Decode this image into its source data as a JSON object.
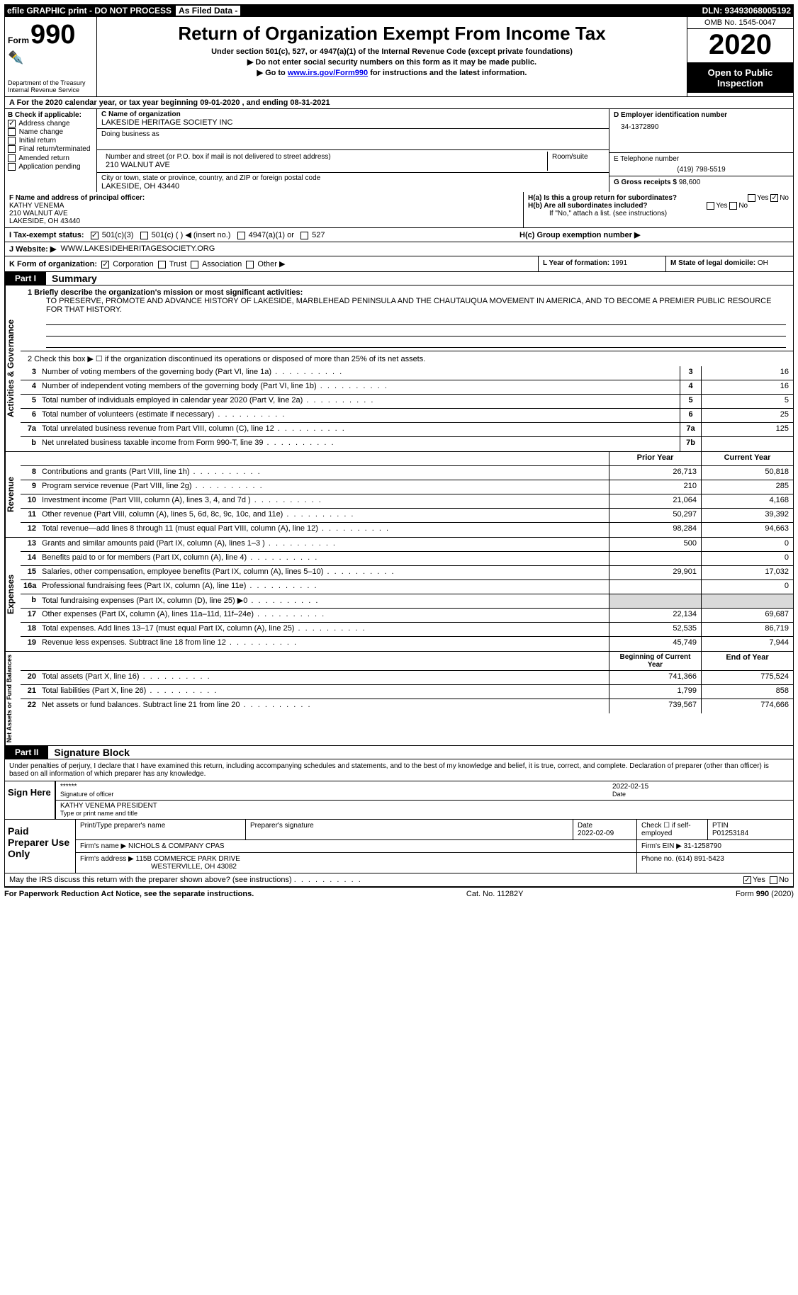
{
  "topbar": {
    "efile": "efile GRAPHIC print - DO NOT PROCESS",
    "asFiled": "As Filed Data -",
    "dln": "DLN: 93493068005192"
  },
  "header": {
    "formLabel": "Form",
    "formNum": "990",
    "dept1": "Department of the Treasury",
    "dept2": "Internal Revenue Service",
    "title": "Return of Organization Exempt From Income Tax",
    "sub1": "Under section 501(c), 527, or 4947(a)(1) of the Internal Revenue Code (except private foundations)",
    "sub2": "▶ Do not enter social security numbers on this form as it may be made public.",
    "sub3_pre": "▶ Go to ",
    "sub3_link": "www.irs.gov/Form990",
    "sub3_post": " for instructions and the latest information.",
    "omb": "OMB No. 1545-0047",
    "year": "2020",
    "open": "Open to Public Inspection"
  },
  "rowA": "A   For the 2020 calendar year, or tax year beginning 09-01-2020   , and ending 08-31-2021",
  "colB": {
    "title": "B Check if applicable:",
    "items": [
      {
        "label": "Address change",
        "checked": true
      },
      {
        "label": "Name change",
        "checked": false
      },
      {
        "label": "Initial return",
        "checked": false
      },
      {
        "label": "Final return/terminated",
        "checked": false
      },
      {
        "label": "Amended return",
        "checked": false
      },
      {
        "label": "Application pending",
        "checked": false
      }
    ]
  },
  "colC": {
    "nameLabel": "C Name of organization",
    "name": "LAKESIDE HERITAGE SOCIETY INC",
    "dba": "Doing business as",
    "streetLabel": "Number and street (or P.O. box if mail is not delivered to street address)",
    "roomLabel": "Room/suite",
    "street": "210 WALNUT AVE",
    "cityLabel": "City or town, state or province, country, and ZIP or foreign postal code",
    "city": "LAKESIDE, OH  43440"
  },
  "colD": {
    "einLabel": "D Employer identification number",
    "ein": "34-1372890",
    "phoneLabel": "E Telephone number",
    "phone": "(419) 798-5519",
    "grossLabel": "G Gross receipts $ ",
    "gross": "98,600"
  },
  "rowF": {
    "label": "F  Name and address of principal officer:",
    "name": "KATHY VENEMA",
    "street": "210 WALNUT AVE",
    "city": "LAKESIDE, OH  43440"
  },
  "rowH": {
    "ha": "H(a)  Is this a group return for subordinates?",
    "hb": "H(b)  Are all subordinates included?",
    "hbNote": "If \"No,\" attach a list. (see instructions)",
    "hc": "H(c)  Group exemption number ▶"
  },
  "rowI": {
    "label": "I   Tax-exempt status:",
    "opt1": "501(c)(3)",
    "opt2": "501(c) (   ) ◀ (insert no.)",
    "opt3": "4947(a)(1) or",
    "opt4": "527"
  },
  "rowJ": {
    "label": "J   Website: ▶",
    "val": "WWW.LAKESIDEHERITAGESOCIETY.ORG"
  },
  "rowK": {
    "label": "K Form of organization:",
    "opts": [
      "Corporation",
      "Trust",
      "Association",
      "Other ▶"
    ]
  },
  "rowL": {
    "label": "L Year of formation: ",
    "val": "1991"
  },
  "rowM": {
    "label": "M State of legal domicile: ",
    "val": "OH"
  },
  "partI": {
    "tag": "Part I",
    "title": "Summary"
  },
  "mission": {
    "line1label": "1  Briefly describe the organization's mission or most significant activities:",
    "text": "TO PRESERVE, PROMOTE AND ADVANCE HISTORY OF LAKESIDE, MARBLEHEAD PENINSULA AND THE CHAUTAUQUA MOVEMENT IN AMERICA, AND TO BECOME A PREMIER PUBLIC RESOURCE FOR THAT HISTORY."
  },
  "line2": "2   Check this box ▶ ☐  if the organization discontinued its operations or disposed of more than 25% of its net assets.",
  "govRows": [
    {
      "n": "3",
      "label": "Number of voting members of the governing body (Part VI, line 1a)",
      "id": "3",
      "val": "16"
    },
    {
      "n": "4",
      "label": "Number of independent voting members of the governing body (Part VI, line 1b)",
      "id": "4",
      "val": "16"
    },
    {
      "n": "5",
      "label": "Total number of individuals employed in calendar year 2020 (Part V, line 2a)",
      "id": "5",
      "val": "5"
    },
    {
      "n": "6",
      "label": "Total number of volunteers (estimate if necessary)",
      "id": "6",
      "val": "25"
    },
    {
      "n": "7a",
      "label": "Total unrelated business revenue from Part VIII, column (C), line 12",
      "id": "7a",
      "val": "125"
    },
    {
      "n": "b",
      "label": "Net unrelated business taxable income from Form 990-T, line 39",
      "id": "7b",
      "val": ""
    }
  ],
  "yearHeader": {
    "prior": "Prior Year",
    "current": "Current Year"
  },
  "revRows": [
    {
      "n": "8",
      "label": "Contributions and grants (Part VIII, line 1h)",
      "p": "26,713",
      "c": "50,818"
    },
    {
      "n": "9",
      "label": "Program service revenue (Part VIII, line 2g)",
      "p": "210",
      "c": "285"
    },
    {
      "n": "10",
      "label": "Investment income (Part VIII, column (A), lines 3, 4, and 7d )",
      "p": "21,064",
      "c": "4,168"
    },
    {
      "n": "11",
      "label": "Other revenue (Part VIII, column (A), lines 5, 6d, 8c, 9c, 10c, and 11e)",
      "p": "50,297",
      "c": "39,392"
    },
    {
      "n": "12",
      "label": "Total revenue—add lines 8 through 11 (must equal Part VIII, column (A), line 12)",
      "p": "98,284",
      "c": "94,663"
    }
  ],
  "expRows": [
    {
      "n": "13",
      "label": "Grants and similar amounts paid (Part IX, column (A), lines 1–3 )",
      "p": "500",
      "c": "0"
    },
    {
      "n": "14",
      "label": "Benefits paid to or for members (Part IX, column (A), line 4)",
      "p": "",
      "c": "0"
    },
    {
      "n": "15",
      "label": "Salaries, other compensation, employee benefits (Part IX, column (A), lines 5–10)",
      "p": "29,901",
      "c": "17,032"
    },
    {
      "n": "16a",
      "label": "Professional fundraising fees (Part IX, column (A), line 11e)",
      "p": "",
      "c": "0"
    },
    {
      "n": "b",
      "label": "Total fundraising expenses (Part IX, column (D), line 25) ▶0",
      "p": "grey",
      "c": "grey"
    },
    {
      "n": "17",
      "label": "Other expenses (Part IX, column (A), lines 11a–11d, 11f–24e)",
      "p": "22,134",
      "c": "69,687"
    },
    {
      "n": "18",
      "label": "Total expenses. Add lines 13–17 (must equal Part IX, column (A), line 25)",
      "p": "52,535",
      "c": "86,719"
    },
    {
      "n": "19",
      "label": "Revenue less expenses. Subtract line 18 from line 12",
      "p": "45,749",
      "c": "7,944"
    }
  ],
  "naHeader": {
    "begin": "Beginning of Current Year",
    "end": "End of Year"
  },
  "naRows": [
    {
      "n": "20",
      "label": "Total assets (Part X, line 16)",
      "p": "741,366",
      "c": "775,524"
    },
    {
      "n": "21",
      "label": "Total liabilities (Part X, line 26)",
      "p": "1,799",
      "c": "858"
    },
    {
      "n": "22",
      "label": "Net assets or fund balances. Subtract line 21 from line 20",
      "p": "739,567",
      "c": "774,666"
    }
  ],
  "partII": {
    "tag": "Part II",
    "title": "Signature Block"
  },
  "sigIntro": "Under penalties of perjury, I declare that I have examined this return, including accompanying schedules and statements, and to the best of my knowledge and belief, it is true, correct, and complete. Declaration of preparer (other than officer) is based on all information of which preparer has any knowledge.",
  "sign": {
    "here": "Sign Here",
    "stars": "******",
    "sigOf": "Signature of officer",
    "date": "2022-02-15",
    "dateLbl": "Date",
    "name": "KATHY VENEMA PRESIDENT",
    "typeLbl": "Type or print name and title"
  },
  "prep": {
    "title": "Paid Preparer Use Only",
    "h1": "Print/Type preparer's name",
    "h2": "Preparer's signature",
    "h3": "Date",
    "h3v": "2022-02-09",
    "h4": "Check ☐ if self-employed",
    "h5": "PTIN",
    "h5v": "P01253184",
    "firmLbl": "Firm's name     ▶",
    "firm": "NICHOLS & COMPANY CPAS",
    "feinLbl": "Firm's EIN ▶",
    "fein": "31-1258790",
    "addrLbl": "Firm's address ▶",
    "addr1": "115B COMMERCE PARK DRIVE",
    "addr2": "WESTERVILLE, OH  43082",
    "phoneLbl": "Phone no.",
    "phone": "(614) 891-5423"
  },
  "mayRow": "May the IRS discuss this return with the preparer shown above? (see instructions)",
  "footer": {
    "left": "For Paperwork Reduction Act Notice, see the separate instructions.",
    "mid": "Cat. No. 11282Y",
    "right": "Form 990 (2020)"
  },
  "vtabs": {
    "gov": "Activities & Governance",
    "rev": "Revenue",
    "exp": "Expenses",
    "na": "Net Assets or Fund Balances"
  }
}
